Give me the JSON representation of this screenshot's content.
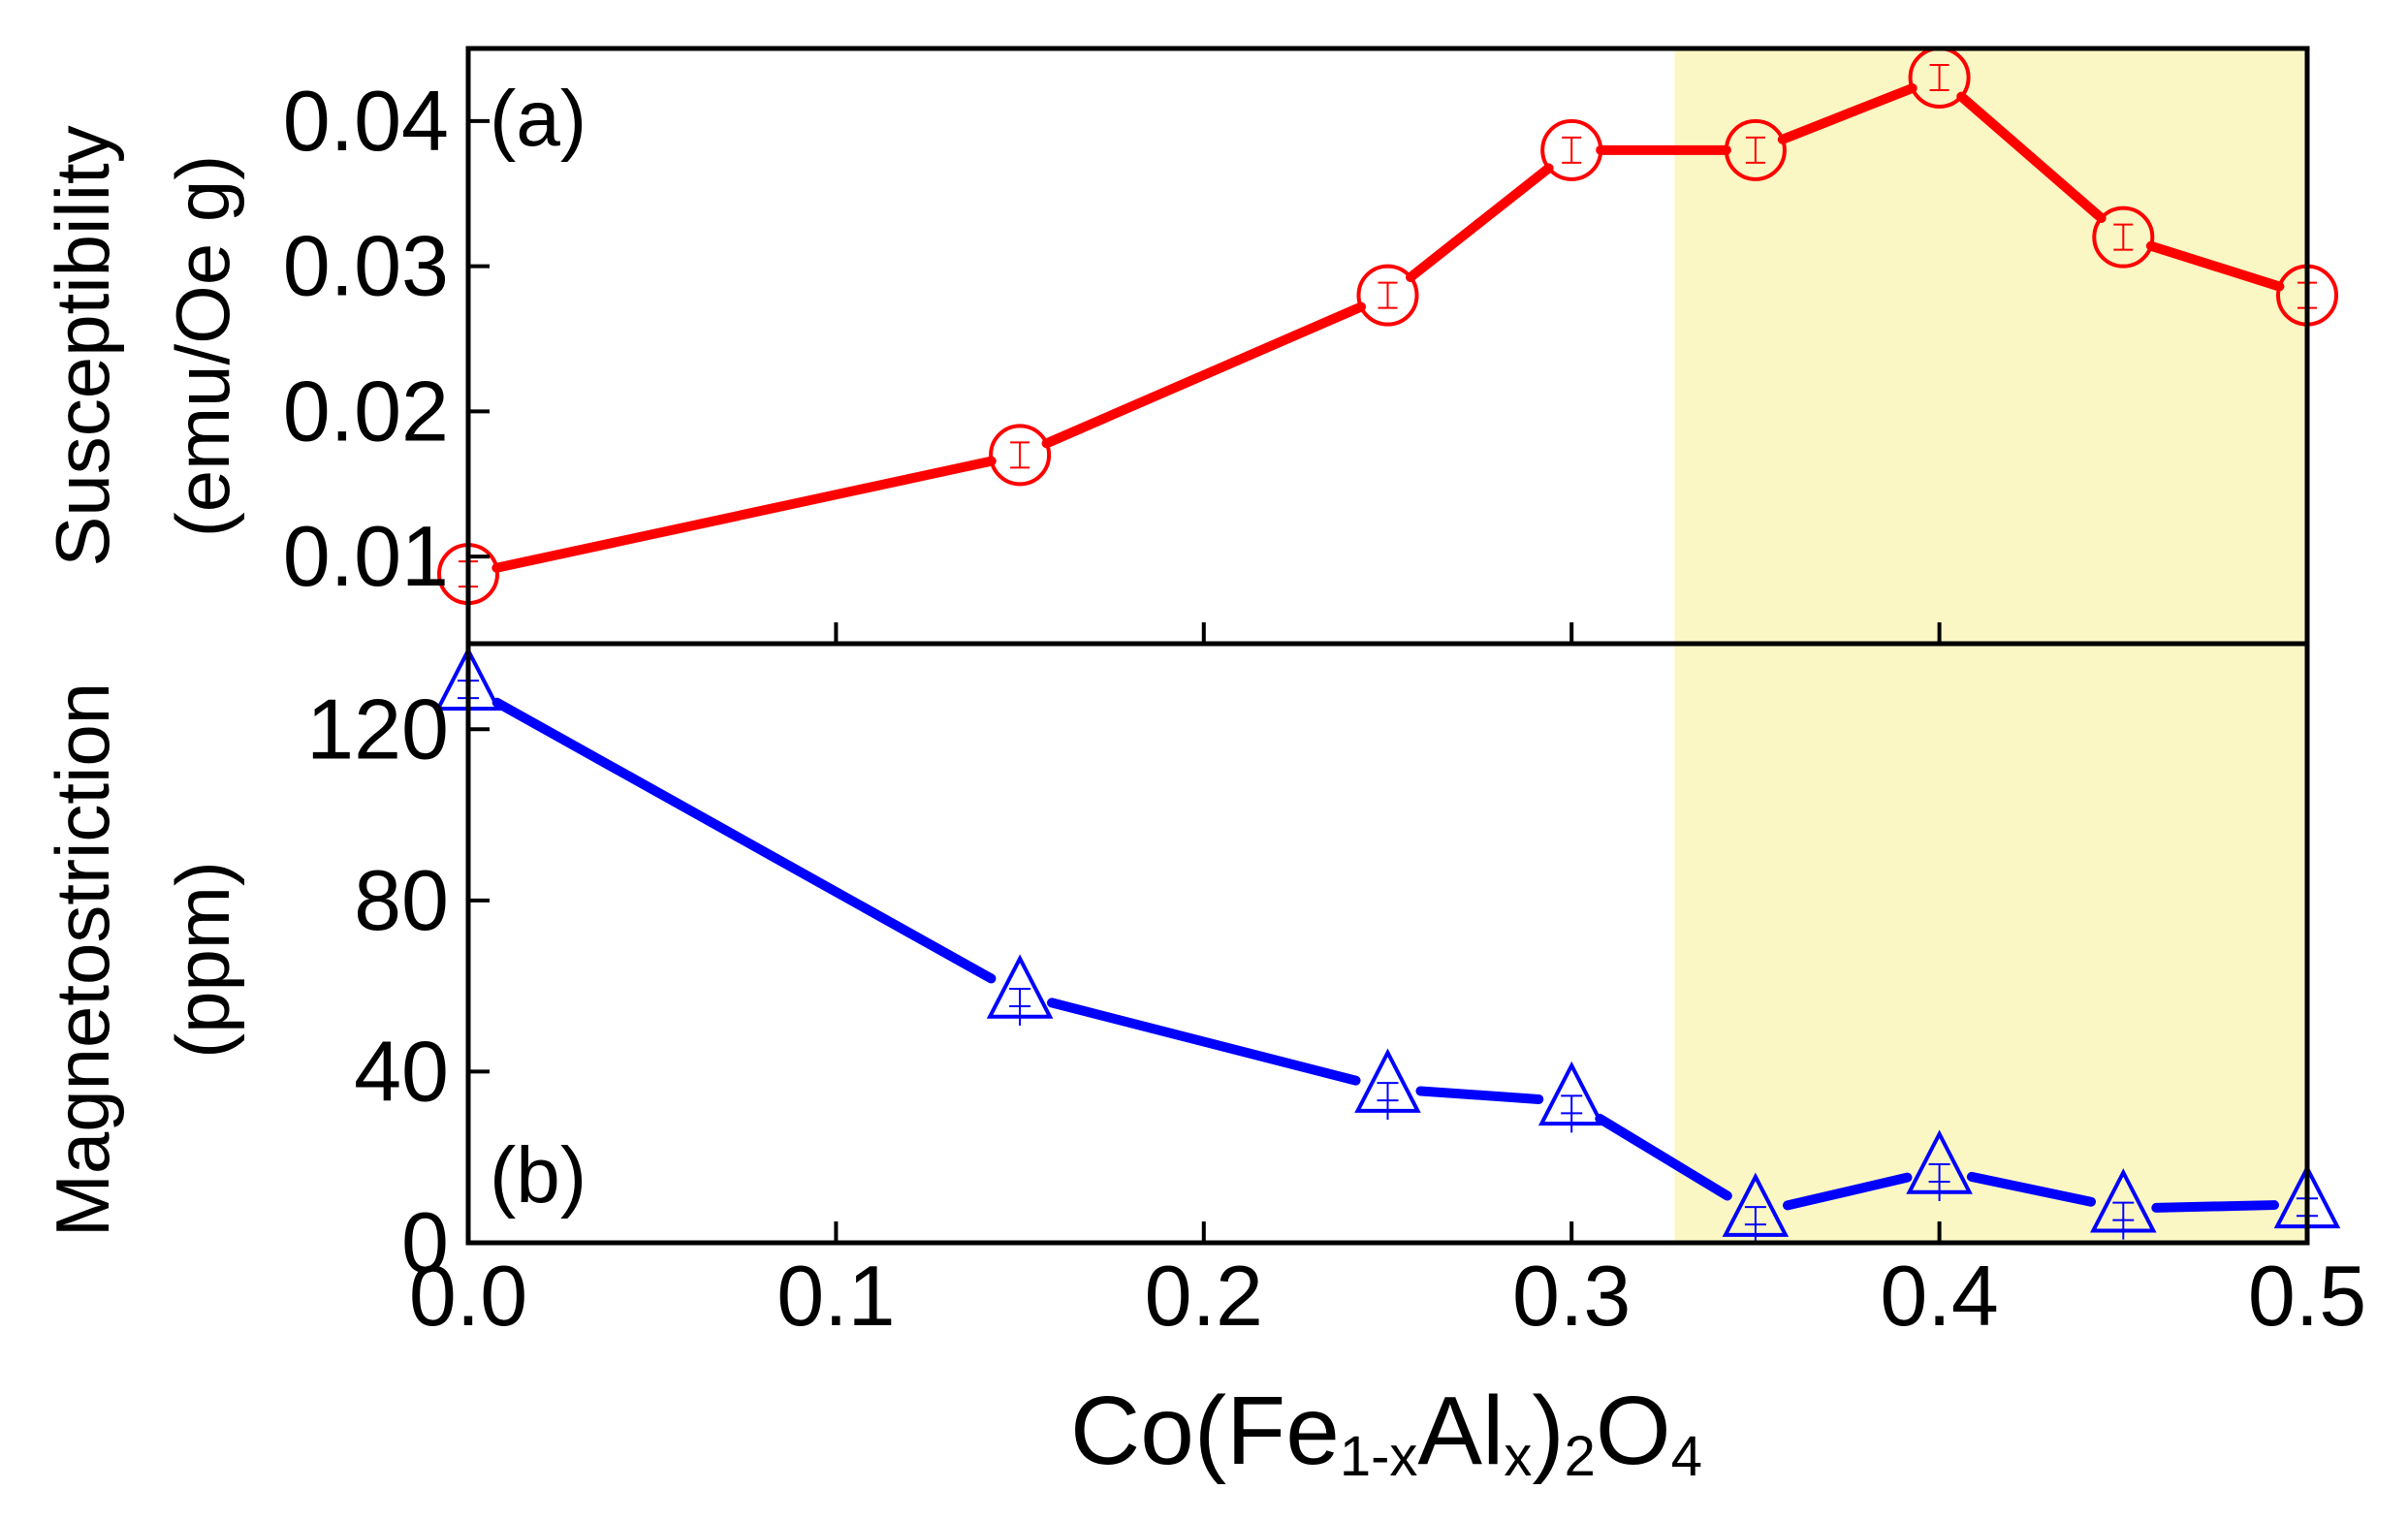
{
  "chart_data": [
    {
      "panel": "top",
      "type": "line",
      "panel_label": "(a)",
      "ylabel": "Susceptibility",
      "ylabel_unit": "(emu/Oe g)",
      "ylim": [
        0.004,
        0.045
      ],
      "yticks": [
        0.01,
        0.02,
        0.03,
        0.04
      ],
      "ytick_labels": [
        "0.01",
        "0.02",
        "0.03",
        "0.04"
      ],
      "color": "#ff0000",
      "marker": "circle",
      "series": [
        {
          "x": [
            0.0,
            0.15,
            0.25,
            0.3,
            0.35,
            0.4,
            0.45,
            0.5
          ],
          "values": [
            0.0088,
            0.017,
            0.028,
            0.038,
            0.038,
            0.043,
            0.032,
            0.028
          ]
        }
      ]
    },
    {
      "panel": "bottom",
      "type": "line",
      "panel_label": "(b)",
      "ylabel": "Magnetostriction",
      "ylabel_unit": "(ppm)",
      "ylim": [
        0,
        140
      ],
      "yticks": [
        0,
        40,
        80,
        120
      ],
      "ytick_labels": [
        "0",
        "40",
        "80",
        "120"
      ],
      "color": "#0000ff",
      "marker": "triangle",
      "series": [
        {
          "x": [
            0.0,
            0.15,
            0.25,
            0.3,
            0.35,
            0.4,
            0.45,
            0.5
          ],
          "values": [
            130,
            58,
            36,
            33,
            7,
            17,
            8,
            9
          ]
        }
      ]
    }
  ],
  "xaxis": {
    "xlim": [
      0.0,
      0.5
    ],
    "xticks": [
      0.0,
      0.1,
      0.2,
      0.3,
      0.4,
      0.5
    ],
    "xtick_labels": [
      "0.0",
      "0.1",
      "0.2",
      "0.3",
      "0.4",
      "0.5"
    ],
    "xlabel_parts": [
      "Co(Fe",
      "1-x",
      "Al",
      "x",
      ")",
      "2",
      "O",
      "4"
    ]
  },
  "highlight": {
    "x_range": [
      0.328,
      0.5
    ],
    "color": "#fbf7c4"
  }
}
